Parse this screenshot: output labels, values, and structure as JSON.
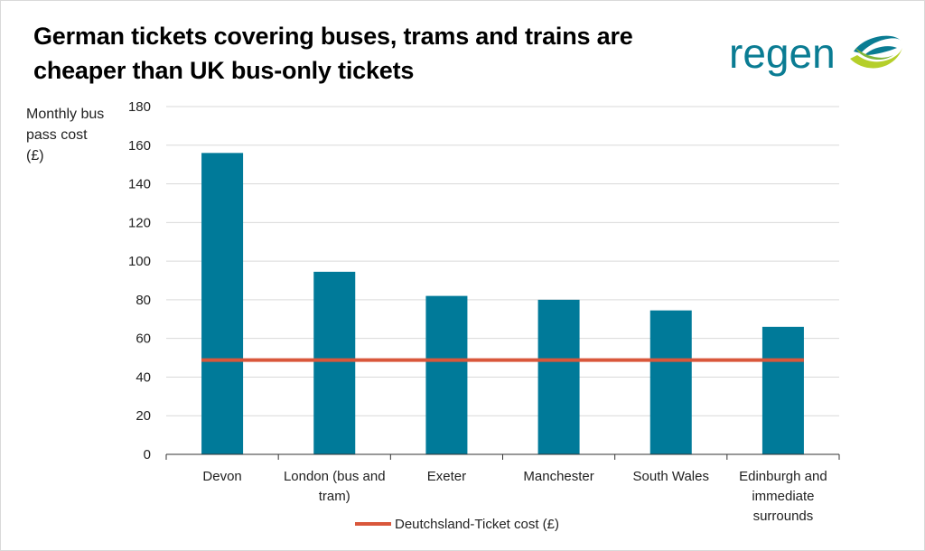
{
  "title_lines": [
    "German tickets covering buses, trams and trains are",
    "cheaper than UK bus-only tickets"
  ],
  "logo_text": "regen",
  "chart_data": {
    "type": "bar",
    "title": "German tickets covering buses, trams and trains are cheaper than UK bus-only tickets",
    "ylabel_lines": [
      "Monthly bus",
      "pass cost",
      "(£)"
    ],
    "ylim": [
      0,
      180
    ],
    "yticks": [
      0,
      20,
      40,
      60,
      80,
      100,
      120,
      140,
      160,
      180
    ],
    "grid": true,
    "categories": [
      [
        "Devon"
      ],
      [
        "London (bus and",
        "tram)"
      ],
      [
        "Exeter"
      ],
      [
        "Manchester"
      ],
      [
        "South Wales"
      ],
      [
        "Edinburgh and",
        "immediate",
        "surrounds"
      ]
    ],
    "values": [
      156,
      94.5,
      82,
      80,
      74.5,
      66
    ],
    "reference_line": {
      "name": "Deutchsland-Ticket cost (£)",
      "value": 48.8
    },
    "legend_position": "bottom",
    "colors": {
      "bar": "#007a99",
      "line": "#d9573b",
      "grid": "#d9d9d9",
      "axis": "#333333"
    }
  }
}
